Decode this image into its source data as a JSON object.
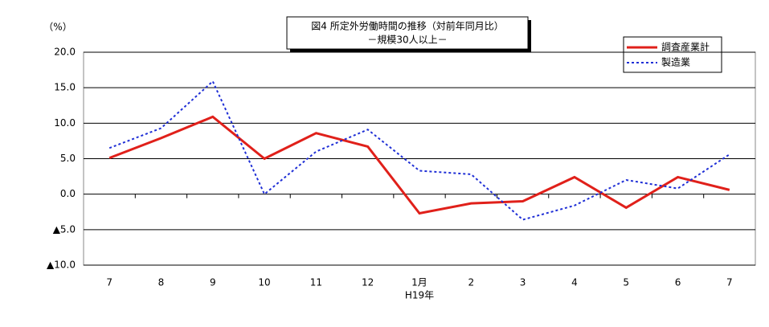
{
  "chart_data": {
    "type": "line",
    "title": "図4  所定外労働時間の推移（対前年同月比）",
    "subtitle": "－規模30人以上－",
    "y_label": "（%）",
    "x_label": "H19年",
    "categories": [
      "7",
      "8",
      "9",
      "10",
      "11",
      "12",
      "1月",
      "2",
      "3",
      "4",
      "5",
      "6",
      "7"
    ],
    "series": [
      {
        "name": "調査産業計",
        "color": "#e0201a",
        "dash": "none",
        "values": [
          5.1,
          7.9,
          10.9,
          5.0,
          8.6,
          6.7,
          -2.7,
          -1.3,
          -1.0,
          2.4,
          -1.9,
          2.4,
          0.6
        ]
      },
      {
        "name": "製造業",
        "color": "#1f2fd6",
        "dash": "3,3",
        "values": [
          6.5,
          9.3,
          15.9,
          0.0,
          6.0,
          9.1,
          3.3,
          2.8,
          -3.6,
          -1.6,
          2.0,
          0.8,
          5.6
        ]
      }
    ],
    "ylim": [
      -10,
      20
    ],
    "yticks": [
      {
        "value": -10,
        "label": "▲10.0"
      },
      {
        "value": -5,
        "label": "▲5.0"
      },
      {
        "value": 0,
        "label": "0.0"
      },
      {
        "value": 5,
        "label": "5.0"
      },
      {
        "value": 10,
        "label": "10.0"
      },
      {
        "value": 15,
        "label": "15.0"
      },
      {
        "value": 20,
        "label": "20.0"
      }
    ],
    "grid": true,
    "legend": "top-right"
  }
}
